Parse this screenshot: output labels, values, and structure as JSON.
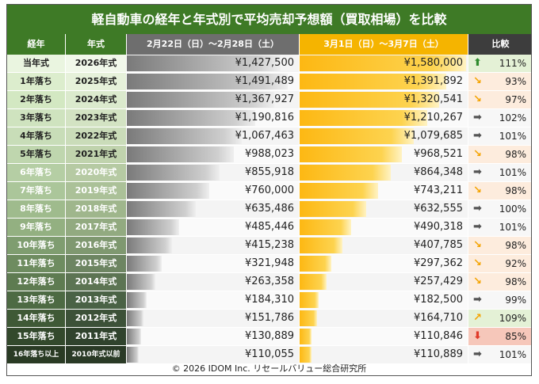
{
  "title": "軽自動車の経年と年式別で平均売却予想額（買取相場）を比較",
  "headers": {
    "age": "経年",
    "year": "年式",
    "period1": "2月22日（日）～2月28日（土）",
    "period2": "3月1日（日）～3月7日（土）",
    "compare": "比較"
  },
  "colors": {
    "title_bg": "#3e7a26",
    "header_p1": "#6e6e6e",
    "header_p2": "#f5b400",
    "header_compare": "#3d3d3d",
    "arrow_up": "#2e8b2e",
    "arrow_down": "#e03a2a",
    "arrow_flat": "#555555",
    "arrow_diag": "#f4a300"
  },
  "chart_data": {
    "type": "table",
    "columns": [
      "経年",
      "年式",
      "2月22日（日）～2月28日（土）",
      "3月1日（日）～3月7日（土）",
      "比較"
    ],
    "rows": [
      {
        "age": "当年式",
        "year": "2026年式",
        "p1": "¥1,427,500",
        "p2": "¥1,580,000",
        "v1": 1427500,
        "v2": 1580000,
        "change": "111%",
        "trend": "up"
      },
      {
        "age": "1年落ち",
        "year": "2025年式",
        "p1": "¥1,491,489",
        "p2": "¥1,391,892",
        "v1": 1491489,
        "v2": 1391892,
        "change": "93%",
        "trend": "down-right"
      },
      {
        "age": "2年落ち",
        "year": "2024年式",
        "p1": "¥1,367,927",
        "p2": "¥1,320,541",
        "v1": 1367927,
        "v2": 1320541,
        "change": "97%",
        "trend": "down-right"
      },
      {
        "age": "3年落ち",
        "year": "2023年式",
        "p1": "¥1,190,816",
        "p2": "¥1,210,267",
        "v1": 1190816,
        "v2": 1210267,
        "change": "102%",
        "trend": "flat"
      },
      {
        "age": "4年落ち",
        "year": "2022年式",
        "p1": "¥1,067,463",
        "p2": "¥1,079,685",
        "v1": 1067463,
        "v2": 1079685,
        "change": "101%",
        "trend": "flat"
      },
      {
        "age": "5年落ち",
        "year": "2021年式",
        "p1": "¥988,023",
        "p2": "¥968,521",
        "v1": 988023,
        "v2": 968521,
        "change": "98%",
        "trend": "down-right"
      },
      {
        "age": "6年落ち",
        "year": "2020年式",
        "p1": "¥855,918",
        "p2": "¥864,348",
        "v1": 855918,
        "v2": 864348,
        "change": "101%",
        "trend": "flat"
      },
      {
        "age": "7年落ち",
        "year": "2019年式",
        "p1": "¥760,000",
        "p2": "¥743,211",
        "v1": 760000,
        "v2": 743211,
        "change": "98%",
        "trend": "down-right"
      },
      {
        "age": "8年落ち",
        "year": "2018年式",
        "p1": "¥635,486",
        "p2": "¥632,555",
        "v1": 635486,
        "v2": 632555,
        "change": "100%",
        "trend": "flat"
      },
      {
        "age": "9年落ち",
        "year": "2017年式",
        "p1": "¥485,446",
        "p2": "¥490,318",
        "v1": 485446,
        "v2": 490318,
        "change": "101%",
        "trend": "flat"
      },
      {
        "age": "10年落ち",
        "year": "2016年式",
        "p1": "¥415,238",
        "p2": "¥407,785",
        "v1": 415238,
        "v2": 407785,
        "change": "98%",
        "trend": "down-right"
      },
      {
        "age": "11年落ち",
        "year": "2015年式",
        "p1": "¥321,948",
        "p2": "¥297,362",
        "v1": 321948,
        "v2": 297362,
        "change": "92%",
        "trend": "down-right"
      },
      {
        "age": "12年落ち",
        "year": "2014年式",
        "p1": "¥263,358",
        "p2": "¥257,429",
        "v1": 263358,
        "v2": 257429,
        "change": "98%",
        "trend": "down-right"
      },
      {
        "age": "13年落ち",
        "year": "2013年式",
        "p1": "¥184,310",
        "p2": "¥182,500",
        "v1": 184310,
        "v2": 182500,
        "change": "99%",
        "trend": "flat"
      },
      {
        "age": "14年落ち",
        "year": "2012年式",
        "p1": "¥151,786",
        "p2": "¥164,710",
        "v1": 151786,
        "v2": 164710,
        "change": "109%",
        "trend": "up-right"
      },
      {
        "age": "15年落ち",
        "year": "2011年式",
        "p1": "¥130,889",
        "p2": "¥110,846",
        "v1": 130889,
        "v2": 110846,
        "change": "85%",
        "trend": "down"
      },
      {
        "age": "16年落ち以上",
        "year": "2010年式以前",
        "p1": "¥110,055",
        "p2": "¥110,889",
        "v1": 110055,
        "v2": 110889,
        "change": "101%",
        "trend": "flat"
      }
    ],
    "value_max": 1600000
  },
  "footer": "© 2026 IDOM Inc. リセールバリュー総合研究所"
}
